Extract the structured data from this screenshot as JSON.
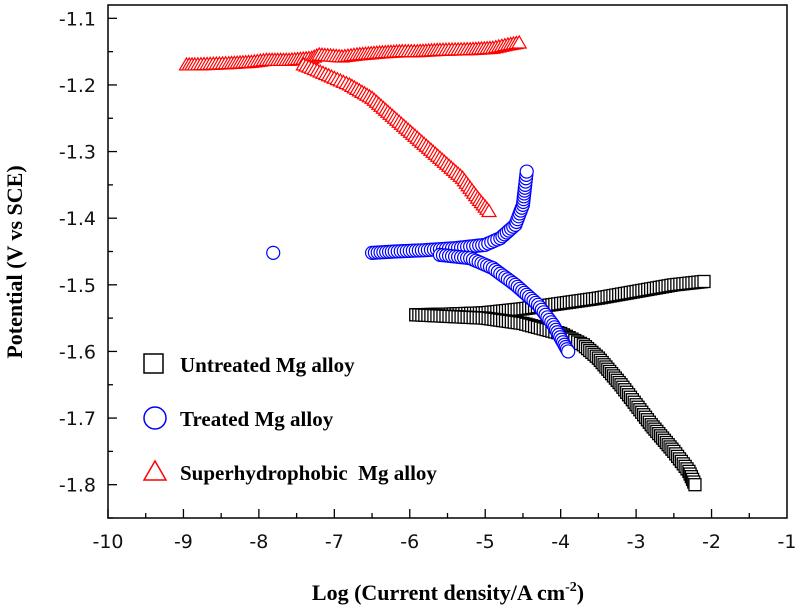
{
  "chart_data": {
    "type": "scatter",
    "title": "",
    "xlabel": "Log (Current density/A cm",
    "xlabel_sup": "-2",
    "xlabel_end": ")",
    "ylabel": "Potential (V vs SCE)",
    "xlim": [
      -10,
      -1
    ],
    "ylim": [
      -1.85,
      -1.08
    ],
    "xticks": [
      "-10",
      "-9",
      "-8",
      "-7",
      "-6",
      "-5",
      "-4",
      "-3",
      "-2",
      "-1"
    ],
    "yticks": [
      "-1.1",
      "-1.2",
      "-1.3",
      "-1.4",
      "-1.5",
      "-1.6",
      "-1.7",
      "-1.8"
    ],
    "grid": false,
    "legend_position": "bottom-left",
    "series": [
      {
        "name": "Untreated Mg alloy",
        "marker": "square",
        "color": "#000000",
        "branches": [
          [
            [
              -5.92,
              -1.545
            ],
            [
              -5.5,
              -1.544
            ],
            [
              -5.0,
              -1.542
            ],
            [
              -4.5,
              -1.536
            ],
            [
              -4.0,
              -1.528
            ],
            [
              -3.5,
              -1.52
            ],
            [
              -3.0,
              -1.51
            ],
            [
              -2.5,
              -1.5
            ],
            [
              -2.1,
              -1.495
            ]
          ],
          [
            [
              -5.92,
              -1.545
            ],
            [
              -5.0,
              -1.55
            ],
            [
              -4.5,
              -1.558
            ],
            [
              -4.0,
              -1.573
            ],
            [
              -3.7,
              -1.59
            ],
            [
              -3.5,
              -1.61
            ],
            [
              -3.2,
              -1.65
            ],
            [
              -3.0,
              -1.68
            ],
            [
              -2.8,
              -1.71
            ],
            [
              -2.5,
              -1.75
            ],
            [
              -2.3,
              -1.78
            ],
            [
              -2.22,
              -1.8
            ]
          ]
        ]
      },
      {
        "name": "Treated Mg alloy",
        "marker": "circle",
        "color": "#0000ff",
        "branches": [
          [
            [
              -7.81,
              -1.452
            ]
          ],
          [
            [
              -6.5,
              -1.452
            ],
            [
              -6.2,
              -1.45
            ],
            [
              -5.8,
              -1.448
            ],
            [
              -5.4,
              -1.445
            ],
            [
              -5.0,
              -1.44
            ],
            [
              -4.8,
              -1.43
            ],
            [
              -4.6,
              -1.41
            ],
            [
              -4.5,
              -1.38
            ],
            [
              -4.47,
              -1.35
            ],
            [
              -4.45,
              -1.33
            ]
          ],
          [
            [
              -5.6,
              -1.455
            ],
            [
              -5.2,
              -1.46
            ],
            [
              -4.9,
              -1.475
            ],
            [
              -4.6,
              -1.5
            ],
            [
              -4.3,
              -1.53
            ],
            [
              -4.1,
              -1.56
            ],
            [
              -3.95,
              -1.59
            ],
            [
              -3.9,
              -1.6
            ]
          ]
        ]
      },
      {
        "name": "Superhydrophobic  Mg alloy",
        "marker": "triangle",
        "color": "#ff0000",
        "branches": [
          [
            [
              -8.96,
              -1.17
            ],
            [
              -8.85,
              -1.17
            ],
            [
              -8.4,
              -1.168
            ],
            [
              -8.1,
              -1.166
            ],
            [
              -7.9,
              -1.163
            ],
            [
              -7.6,
              -1.163
            ],
            [
              -7.3,
              -1.16
            ],
            [
              -7.2,
              -1.155
            ],
            [
              -6.9,
              -1.158
            ],
            [
              -6.7,
              -1.155
            ],
            [
              -6.4,
              -1.152
            ],
            [
              -6.1,
              -1.15
            ],
            [
              -5.9,
              -1.15
            ],
            [
              -5.6,
              -1.148
            ],
            [
              -5.2,
              -1.147
            ],
            [
              -4.9,
              -1.145
            ],
            [
              -4.7,
              -1.14
            ],
            [
              -4.55,
              -1.137
            ]
          ],
          [
            [
              -7.41,
              -1.17
            ],
            [
              -7.3,
              -1.175
            ],
            [
              -7.0,
              -1.19
            ],
            [
              -6.8,
              -1.2
            ],
            [
              -6.5,
              -1.22
            ],
            [
              -6.2,
              -1.25
            ],
            [
              -5.9,
              -1.28
            ],
            [
              -5.6,
              -1.31
            ],
            [
              -5.3,
              -1.34
            ],
            [
              -5.1,
              -1.37
            ],
            [
              -4.95,
              -1.39
            ]
          ]
        ]
      }
    ]
  }
}
